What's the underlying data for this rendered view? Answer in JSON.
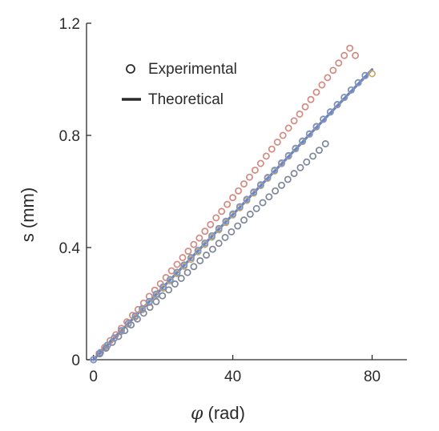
{
  "chart_data": {
    "type": "scatter",
    "xlabel_symbol": "φ",
    "xlabel_unit": " (rad)",
    "ylabel": "s (mm)",
    "xlim": [
      -2,
      90
    ],
    "ylim": [
      0,
      1.2
    ],
    "xticks": [
      0,
      40,
      80
    ],
    "xtick_labels": [
      "0",
      "40",
      "80"
    ],
    "yticks": [
      0,
      0.4,
      0.8,
      1.2
    ],
    "ytick_labels": [
      "0",
      "0.4",
      "0.8",
      "1.2"
    ],
    "grid": false,
    "legend_position": "top-left",
    "legend": {
      "experimental_label": "Experimental",
      "theoretical_label": "Theoretical"
    },
    "colors": {
      "red": "#d48a80",
      "gold": "#c9a865",
      "gray": "#7e869c",
      "blue": "#7d94c6",
      "theory_line": "#6a84c2",
      "legend_marker": "#2b2b2b",
      "axis": "#2b2b2b"
    },
    "theory": {
      "x": [
        0,
        80
      ],
      "y": [
        0,
        1.035
      ]
    },
    "series": [
      {
        "color_key": "red",
        "x": [
          0,
          1.6,
          3.2,
          4.8,
          6.4,
          8.0,
          9.6,
          11.2,
          12.8,
          14.4,
          16.0,
          17.6,
          19.2,
          20.8,
          22.4,
          24.0,
          25.6,
          27.2,
          28.8,
          30.4,
          32.0,
          33.6,
          35.2,
          36.8,
          38.4,
          40.0,
          41.6,
          43.2,
          44.8,
          46.4,
          48.0,
          49.6,
          51.2,
          52.8,
          54.4,
          56.0,
          57.6,
          59.2,
          60.8,
          62.4,
          64.0,
          65.6,
          67.2,
          68.8,
          70.4,
          72.0,
          73.6,
          75.2
        ],
        "y": [
          0.0,
          0.022,
          0.044,
          0.068,
          0.089,
          0.112,
          0.135,
          0.158,
          0.179,
          0.202,
          0.226,
          0.248,
          0.271,
          0.293,
          0.317,
          0.34,
          0.364,
          0.387,
          0.411,
          0.434,
          0.458,
          0.482,
          0.506,
          0.529,
          0.554,
          0.578,
          0.602,
          0.627,
          0.651,
          0.676,
          0.7,
          0.726,
          0.751,
          0.776,
          0.8,
          0.826,
          0.852,
          0.876,
          0.902,
          0.928,
          0.954,
          0.98,
          1.006,
          1.032,
          1.058,
          1.085,
          1.111,
          1.085
        ]
      },
      {
        "color_key": "gold",
        "x": [
          0,
          2,
          4,
          6,
          8,
          10,
          12,
          14,
          16,
          18,
          20,
          22,
          24,
          26,
          28,
          30,
          32,
          34,
          36,
          38,
          40,
          42,
          44,
          46,
          48,
          50,
          52,
          54,
          56,
          58,
          60,
          62,
          64,
          66,
          68,
          70,
          72,
          74,
          76,
          78,
          80
        ],
        "y": [
          0.0,
          0.025,
          0.05,
          0.076,
          0.101,
          0.127,
          0.152,
          0.178,
          0.204,
          0.229,
          0.255,
          0.281,
          0.307,
          0.333,
          0.358,
          0.385,
          0.411,
          0.437,
          0.463,
          0.489,
          0.516,
          0.542,
          0.568,
          0.594,
          0.621,
          0.647,
          0.673,
          0.699,
          0.726,
          0.752,
          0.778,
          0.804,
          0.83,
          0.857,
          0.883,
          0.909,
          0.935,
          0.962,
          0.988,
          1.013,
          1.02
        ]
      },
      {
        "color_key": "gray",
        "x": [
          0,
          1.8,
          3.6,
          5.4,
          7.2,
          9.0,
          10.8,
          12.6,
          14.4,
          16.2,
          18.0,
          19.8,
          21.6,
          23.4,
          25.2,
          27.0,
          28.8,
          30.6,
          32.4,
          34.2,
          36.0,
          37.8,
          39.6,
          41.4,
          43.2,
          45.0,
          46.8,
          48.6,
          50.4,
          52.2,
          54.0,
          55.8,
          57.6,
          59.4,
          61.2,
          63.0,
          64.8,
          66.6
        ],
        "y": [
          0.0,
          0.021,
          0.041,
          0.062,
          0.083,
          0.104,
          0.124,
          0.145,
          0.166,
          0.187,
          0.207,
          0.228,
          0.249,
          0.27,
          0.29,
          0.311,
          0.332,
          0.353,
          0.373,
          0.394,
          0.415,
          0.436,
          0.456,
          0.477,
          0.498,
          0.519,
          0.539,
          0.56,
          0.581,
          0.602,
          0.622,
          0.643,
          0.664,
          0.685,
          0.705,
          0.726,
          0.747,
          0.77
        ]
      },
      {
        "color_key": "blue",
        "x": [
          0,
          2,
          4,
          6,
          8,
          10,
          12,
          14,
          16,
          18,
          20,
          22,
          24,
          26,
          28,
          30,
          32,
          34,
          36,
          38,
          40,
          42,
          44,
          46,
          48,
          50,
          52,
          54,
          56,
          58,
          60,
          62,
          64,
          66,
          68,
          70,
          72,
          74,
          76,
          78
        ],
        "y": [
          0.0,
          0.026,
          0.052,
          0.078,
          0.104,
          0.13,
          0.156,
          0.182,
          0.208,
          0.234,
          0.26,
          0.286,
          0.312,
          0.338,
          0.364,
          0.39,
          0.416,
          0.442,
          0.468,
          0.494,
          0.52,
          0.546,
          0.572,
          0.598,
          0.624,
          0.65,
          0.676,
          0.702,
          0.728,
          0.754,
          0.78,
          0.806,
          0.832,
          0.858,
          0.884,
          0.91,
          0.936,
          0.962,
          0.988,
          1.014
        ]
      }
    ]
  }
}
